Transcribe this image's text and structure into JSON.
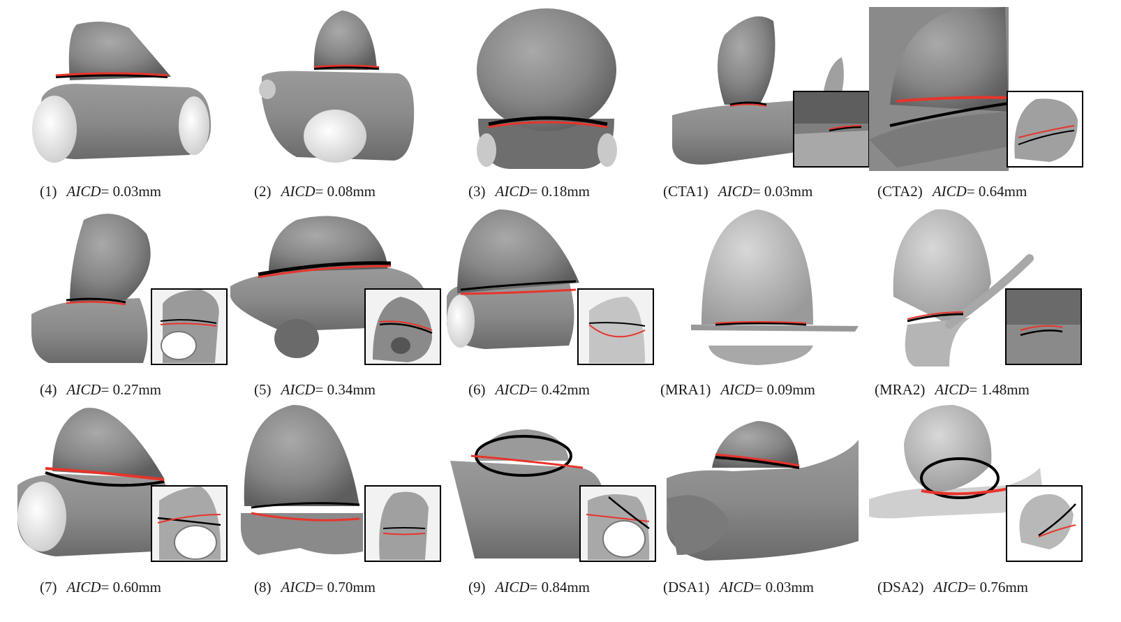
{
  "figure": {
    "metric_label": "AICD",
    "unit": "mm",
    "line_colors": {
      "reference": "#000000",
      "predicted": "#e8342b"
    },
    "panels": [
      {
        "id": "(1)",
        "value": "0.03",
        "has_inset": false
      },
      {
        "id": "(2)",
        "value": "0.08",
        "has_inset": false
      },
      {
        "id": "(3)",
        "value": "0.18",
        "has_inset": false
      },
      {
        "id": "(CTA1)",
        "value": "0.03",
        "has_inset": true
      },
      {
        "id": "(CTA2)",
        "value": "0.64",
        "has_inset": true
      },
      {
        "id": "(4)",
        "value": "0.27",
        "has_inset": true
      },
      {
        "id": "(5)",
        "value": "0.34",
        "has_inset": true
      },
      {
        "id": "(6)",
        "value": "0.42",
        "has_inset": true
      },
      {
        "id": "(MRA1)",
        "value": "0.09",
        "has_inset": false
      },
      {
        "id": "(MRA2)",
        "value": "1.48",
        "has_inset": true
      },
      {
        "id": "(7)",
        "value": "0.60",
        "has_inset": true
      },
      {
        "id": "(8)",
        "value": "0.70",
        "has_inset": true
      },
      {
        "id": "(9)",
        "value": "0.84",
        "has_inset": true
      },
      {
        "id": "(DSA1)",
        "value": "0.03",
        "has_inset": false
      },
      {
        "id": "(DSA2)",
        "value": "0.76",
        "has_inset": true
      }
    ]
  }
}
